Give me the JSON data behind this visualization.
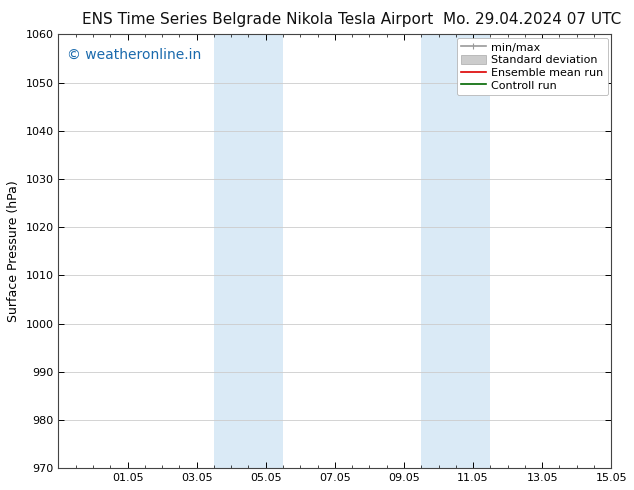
{
  "title_left": "ENS Time Series Belgrade Nikola Tesla Airport",
  "title_right": "Mo. 29.04.2024 07 UTC",
  "ylabel": "Surface Pressure (hPa)",
  "ylim": [
    970,
    1060
  ],
  "yticks": [
    970,
    980,
    990,
    1000,
    1010,
    1020,
    1030,
    1040,
    1050,
    1060
  ],
  "xlim": [
    0,
    16
  ],
  "xtick_positions": [
    2,
    4,
    6,
    8,
    10,
    12,
    14,
    16
  ],
  "xtick_labels": [
    "01.05",
    "03.05",
    "05.05",
    "07.05",
    "09.05",
    "11.05",
    "13.05",
    "15.05"
  ],
  "shaded_bands": [
    {
      "start": 4.5,
      "end": 6.5
    },
    {
      "start": 10.5,
      "end": 12.5
    }
  ],
  "shaded_color": "#daeaf6",
  "watermark_text": "© weatheronline.in",
  "watermark_color": "#1a6aad",
  "watermark_fontsize": 10,
  "legend_items": [
    {
      "label": "min/max",
      "color": "#999999",
      "lw": 1.2
    },
    {
      "label": "Standard deviation",
      "color": "#cccccc",
      "lw": 7
    },
    {
      "label": "Ensemble mean run",
      "color": "#dd0000",
      "lw": 1.2
    },
    {
      "label": "Controll run",
      "color": "#006600",
      "lw": 1.2
    }
  ],
  "title_fontsize": 11,
  "ylabel_fontsize": 9,
  "tick_fontsize": 8,
  "legend_fontsize": 8,
  "watermark_fontsize_val": 9,
  "bg_color": "#ffffff",
  "grid_color": "#cccccc",
  "grid_lw": 0.6,
  "spine_color": "#444444",
  "minor_tick_count": 4
}
